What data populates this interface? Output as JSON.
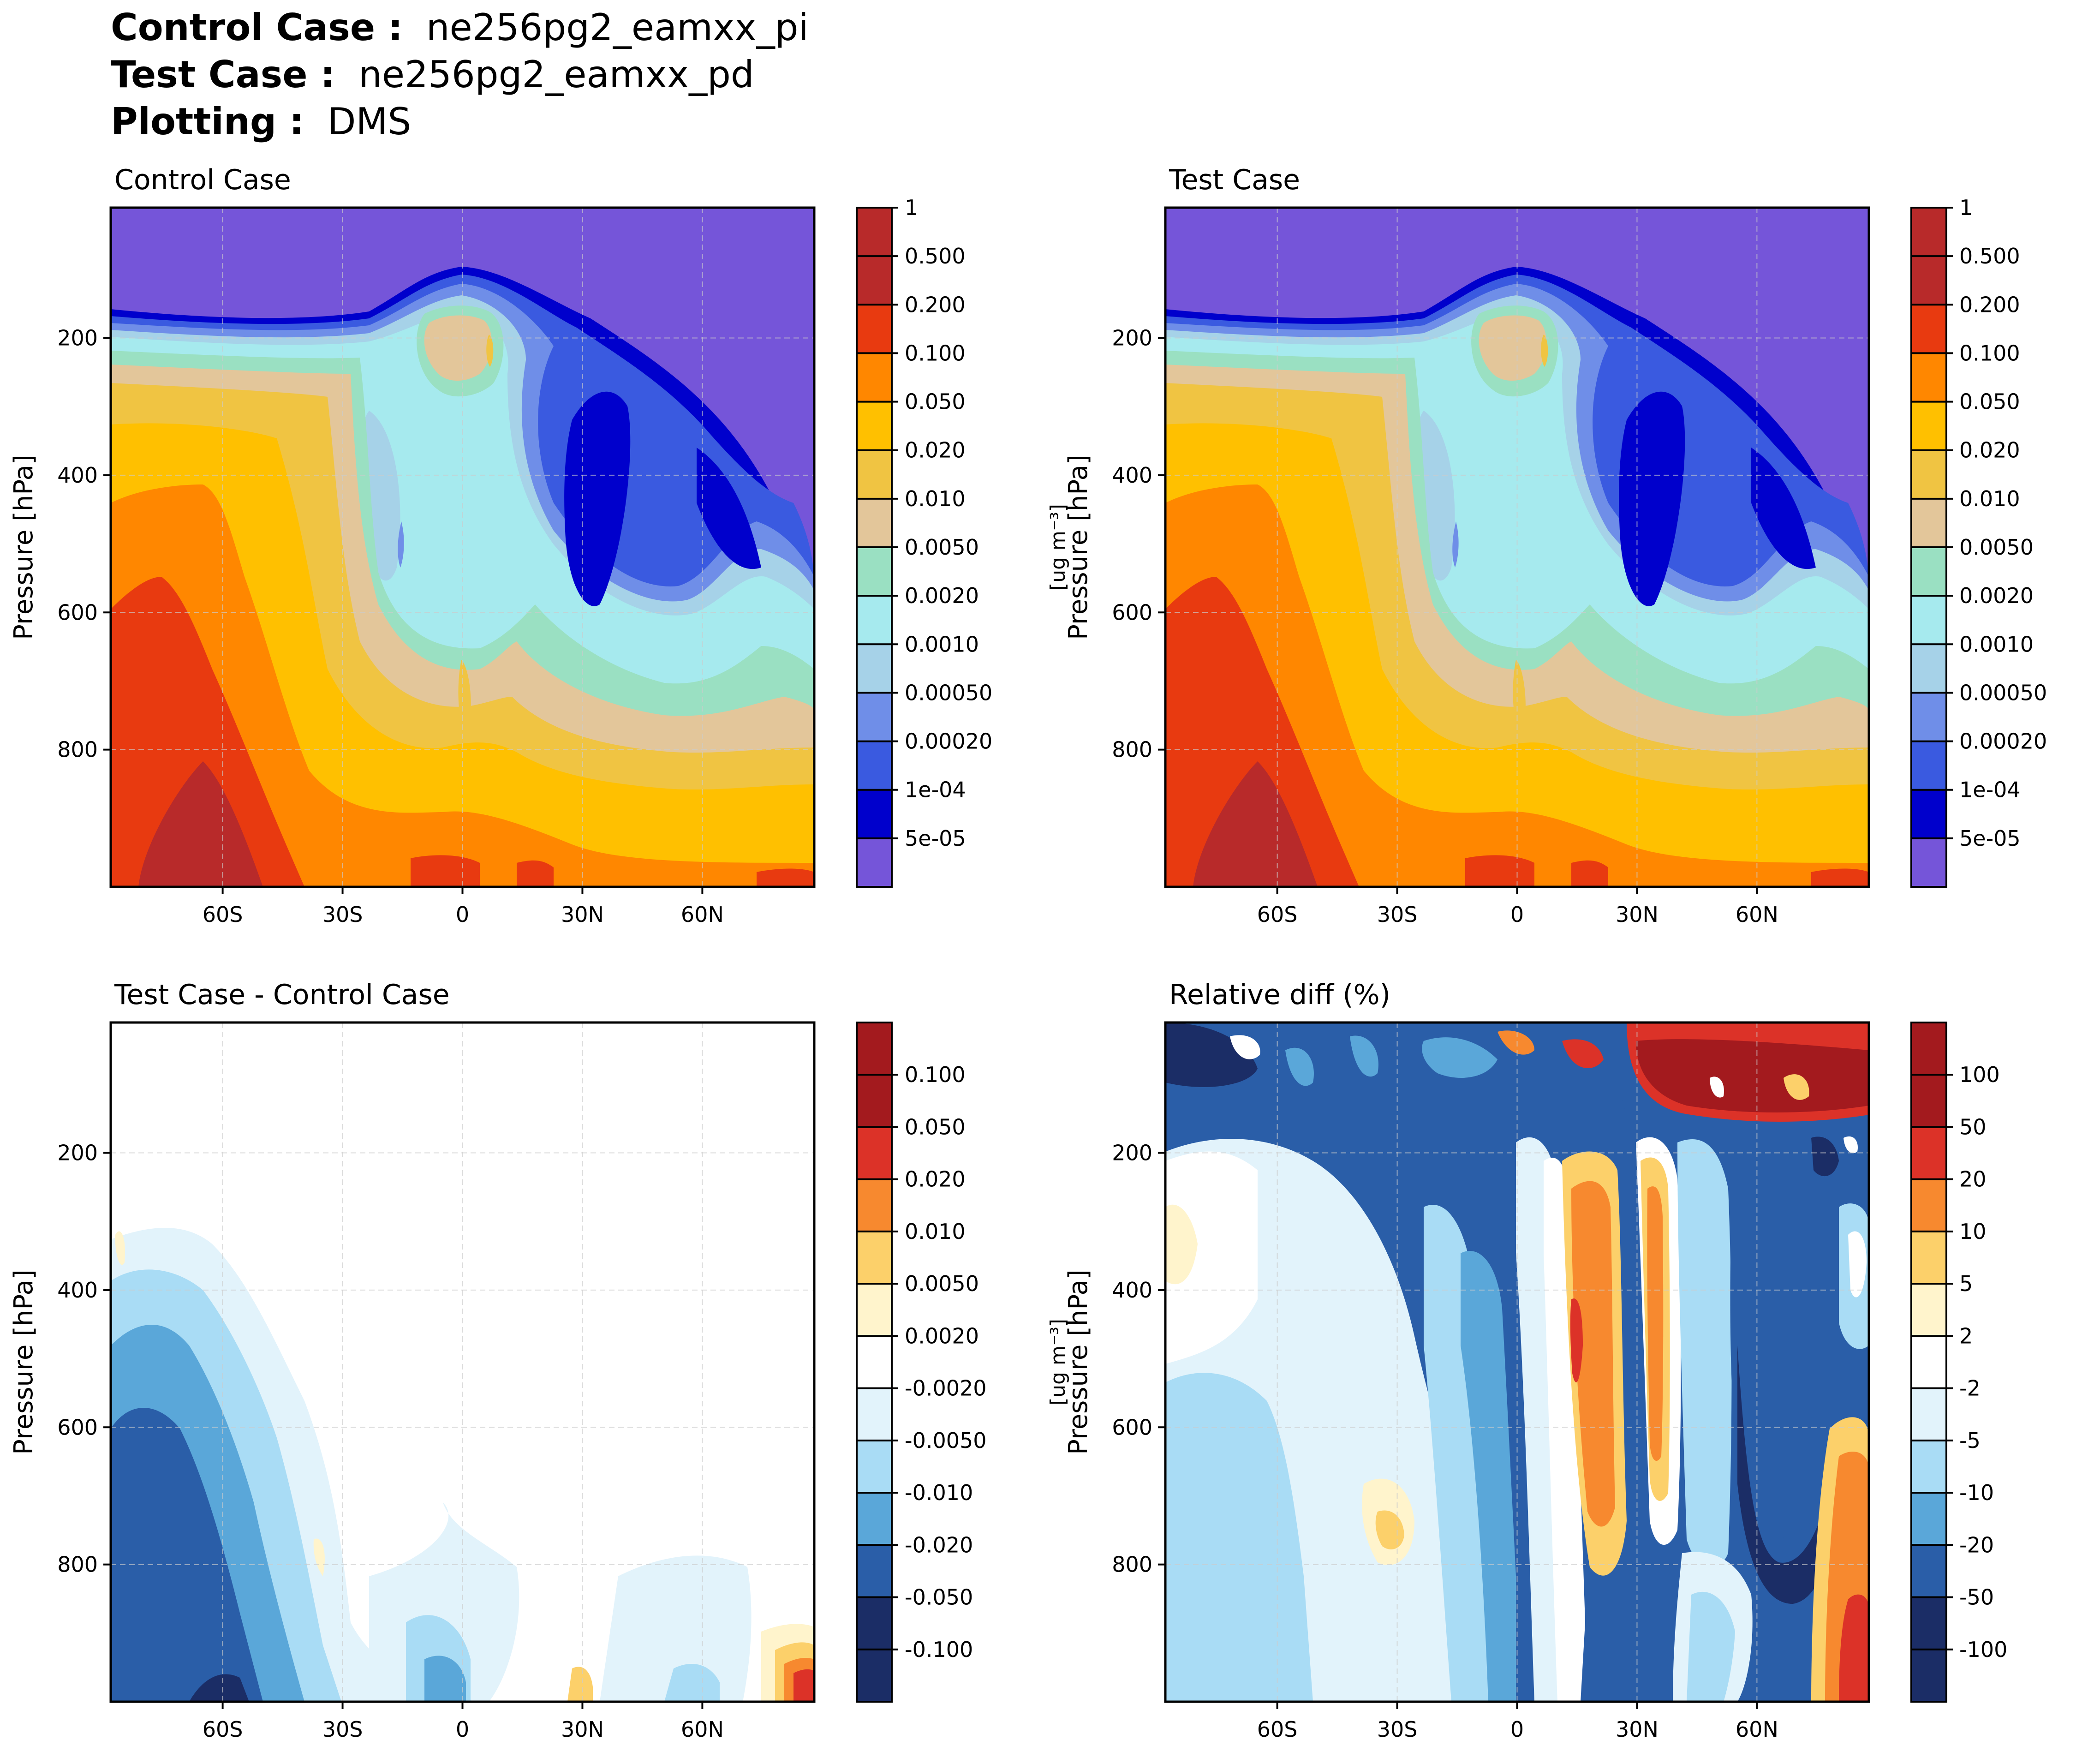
{
  "header": {
    "control_label": "Control Case :",
    "control_value": "ne256pg2_eamxx_pi",
    "test_label": "Test Case :",
    "test_value": "ne256pg2_eamxx_pd",
    "plotting_label": "Plotting :",
    "plotting_value": "DMS"
  },
  "chart_data": [
    {
      "type": "heatmap",
      "title": "Control Case",
      "ylabel": "Pressure [hPa]",
      "xlabel": "",
      "x_ticks": [
        "60S",
        "30S",
        "0",
        "30N",
        "60N"
      ],
      "x_tick_values": [
        -60,
        -30,
        0,
        30,
        60
      ],
      "xlim": [
        -88,
        88
      ],
      "y_ticks": [
        "200",
        "400",
        "600",
        "800"
      ],
      "y_tick_values": [
        200,
        400,
        600,
        800
      ],
      "ylim": [
        1000,
        10
      ],
      "grid": true,
      "colorbar": {
        "label": "[ug m⁻³]",
        "levels": [
          "5e-05",
          "1e-04",
          "0.00020",
          "0.00050",
          "0.0010",
          "0.0020",
          "0.0050",
          "0.010",
          "0.020",
          "0.050",
          "0.100",
          "0.200",
          "0.500",
          "1"
        ],
        "colors": [
          "#7555d9",
          "#0000cc",
          "#3a5ae0",
          "#6f8ee8",
          "#a6d2e8",
          "#a6eaee",
          "#9ae0c2",
          "#e3c69a",
          "#f0c442",
          "#ffc000",
          "#ff8700",
          "#e83a10",
          "#b82a2a",
          "#b82a2a"
        ]
      }
    },
    {
      "type": "heatmap",
      "title": "Test Case",
      "ylabel": "Pressure [hPa]",
      "xlabel": "",
      "x_ticks": [
        "60S",
        "30S",
        "0",
        "30N",
        "60N"
      ],
      "x_tick_values": [
        -60,
        -30,
        0,
        30,
        60
      ],
      "xlim": [
        -88,
        88
      ],
      "y_ticks": [
        "200",
        "400",
        "600",
        "800"
      ],
      "y_tick_values": [
        200,
        400,
        600,
        800
      ],
      "ylim": [
        1000,
        10
      ],
      "grid": true,
      "colorbar": {
        "label": "[ug m⁻³]",
        "levels": [
          "5e-05",
          "1e-04",
          "0.00020",
          "0.00050",
          "0.0010",
          "0.0020",
          "0.0050",
          "0.010",
          "0.020",
          "0.050",
          "0.100",
          "0.200",
          "0.500",
          "1"
        ],
        "colors": [
          "#7555d9",
          "#0000cc",
          "#3a5ae0",
          "#6f8ee8",
          "#a6d2e8",
          "#a6eaee",
          "#9ae0c2",
          "#e3c69a",
          "#f0c442",
          "#ffc000",
          "#ff8700",
          "#e83a10",
          "#b82a2a",
          "#b82a2a"
        ]
      }
    },
    {
      "type": "heatmap",
      "title": "Test Case - Control Case",
      "ylabel": "Pressure [hPa]",
      "xlabel": "",
      "x_ticks": [
        "60S",
        "30S",
        "0",
        "30N",
        "60N"
      ],
      "x_tick_values": [
        -60,
        -30,
        0,
        30,
        60
      ],
      "xlim": [
        -88,
        88
      ],
      "y_ticks": [
        "200",
        "400",
        "600",
        "800"
      ],
      "y_tick_values": [
        200,
        400,
        600,
        800
      ],
      "ylim": [
        1000,
        10
      ],
      "grid": true,
      "colorbar": {
        "label": "[ug m⁻³]",
        "levels": [
          "-0.100",
          "-0.050",
          "-0.020",
          "-0.010",
          "-0.0050",
          "-0.0020",
          "0.0020",
          "0.0050",
          "0.010",
          "0.020",
          "0.050",
          "0.100"
        ],
        "colors": [
          "#1b2d66",
          "#1b2d66",
          "#2a5ea8",
          "#5aa7d9",
          "#a9dcf5",
          "#e2f3fb",
          "#ffffff",
          "#fff4cc",
          "#fcd06a",
          "#f7892f",
          "#dc3228",
          "#a31a1e",
          "#a31a1e"
        ]
      }
    },
    {
      "type": "heatmap",
      "title": "Relative diff (%)",
      "ylabel": "Pressure [hPa]",
      "xlabel": "",
      "x_ticks": [
        "60S",
        "30S",
        "0",
        "30N",
        "60N"
      ],
      "x_tick_values": [
        -60,
        -30,
        0,
        30,
        60
      ],
      "xlim": [
        -88,
        88
      ],
      "y_ticks": [
        "200",
        "400",
        "600",
        "800"
      ],
      "y_tick_values": [
        200,
        400,
        600,
        800
      ],
      "ylim": [
        1000,
        10
      ],
      "grid": true,
      "colorbar": {
        "label": "[%]",
        "levels": [
          "-100",
          "-50",
          "-20",
          "-10",
          "-5",
          "-2",
          "2",
          "5",
          "10",
          "20",
          "50",
          "100"
        ],
        "colors": [
          "#1b2d66",
          "#1b2d66",
          "#2a5ea8",
          "#5aa7d9",
          "#a9dcf5",
          "#e2f3fb",
          "#ffffff",
          "#fff4cc",
          "#fcd06a",
          "#f7892f",
          "#dc3228",
          "#a31a1e",
          "#a31a1e"
        ]
      }
    }
  ]
}
